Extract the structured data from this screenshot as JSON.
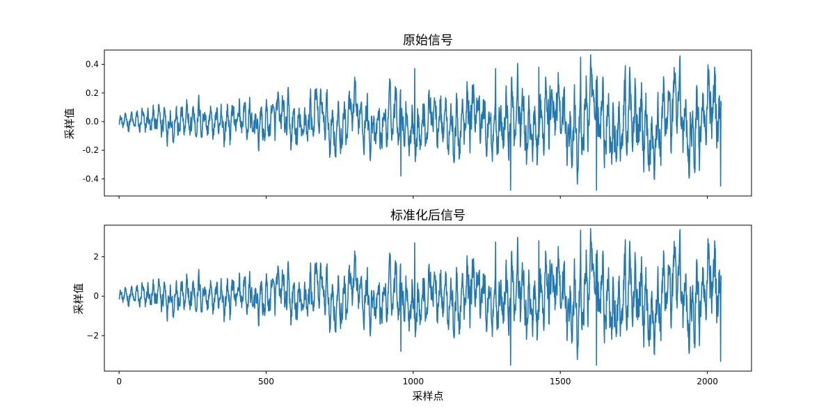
{
  "chart_data": [
    {
      "type": "line",
      "title": "原始信号",
      "xlabel": "",
      "ylabel": "采样值",
      "xlim": [
        -50,
        2150
      ],
      "ylim": [
        -0.52,
        0.5
      ],
      "x_ticks": [
        0,
        500,
        1000,
        1500,
        2000
      ],
      "x_tick_labels": [
        "",
        "",
        "",
        "",
        ""
      ],
      "y_ticks": [
        0.4,
        0.2,
        0.0,
        -0.2,
        -0.4
      ],
      "y_tick_labels": [
        "0.4",
        "0.2",
        "0.0",
        "-0.2",
        "-0.4"
      ],
      "grid": false,
      "line_color": "#1f77b4",
      "series": [
        {
          "x_start": 0,
          "x_step": 1,
          "num_samples": 2048,
          "amplitude_envelope": [
            [
              0,
              0.05
            ],
            [
              150,
              0.13
            ],
            [
              400,
              0.14
            ],
            [
              650,
              0.19
            ],
            [
              900,
              0.2
            ],
            [
              1100,
              0.22
            ],
            [
              1300,
              0.26
            ],
            [
              1600,
              0.32
            ],
            [
              1800,
              0.3
            ],
            [
              2048,
              0.32
            ]
          ],
          "extremes": [
            {
              "x": 1569,
              "y": 0.45
            },
            {
              "x": 1623,
              "y": -0.48
            },
            {
              "x": 1331,
              "y": -0.48
            },
            {
              "x": 2045,
              "y": -0.45
            },
            {
              "x": 1005,
              "y": 0.37
            },
            {
              "x": 958,
              "y": -0.38
            },
            {
              "x": 1280,
              "y": 0.37
            },
            {
              "x": 2025,
              "y": 0.38
            },
            {
              "x": 1427,
              "y": 0.38
            }
          ]
        }
      ]
    },
    {
      "type": "line",
      "title": "标准化后信号",
      "xlabel": "采样点",
      "ylabel": "采样值",
      "xlim": [
        -50,
        2150
      ],
      "ylim": [
        -3.8,
        3.6
      ],
      "x_ticks": [
        0,
        500,
        1000,
        1500,
        2000
      ],
      "x_tick_labels": [
        "0",
        "500",
        "1000",
        "1500",
        "2000"
      ],
      "y_ticks": [
        2,
        0,
        -2
      ],
      "y_tick_labels": [
        "2",
        "0",
        "−2"
      ],
      "grid": false,
      "line_color": "#1f77b4",
      "series": [
        {
          "x_start": 0,
          "x_step": 1,
          "num_samples": 2048,
          "amplitude_envelope": [
            [
              0,
              0.37
            ],
            [
              150,
              0.95
            ],
            [
              400,
              1.03
            ],
            [
              650,
              1.4
            ],
            [
              900,
              1.47
            ],
            [
              1100,
              1.62
            ],
            [
              1300,
              1.91
            ],
            [
              1600,
              2.35
            ],
            [
              1800,
              2.2
            ],
            [
              2048,
              2.35
            ]
          ],
          "extremes": [
            {
              "x": 1569,
              "y": 3.35
            },
            {
              "x": 1623,
              "y": -3.5
            },
            {
              "x": 1331,
              "y": -3.5
            },
            {
              "x": 2045,
              "y": -3.3
            },
            {
              "x": 1005,
              "y": 2.7
            },
            {
              "x": 958,
              "y": -2.8
            },
            {
              "x": 1280,
              "y": 2.75
            },
            {
              "x": 2025,
              "y": 2.8
            },
            {
              "x": 1427,
              "y": 2.8
            }
          ]
        }
      ]
    }
  ]
}
